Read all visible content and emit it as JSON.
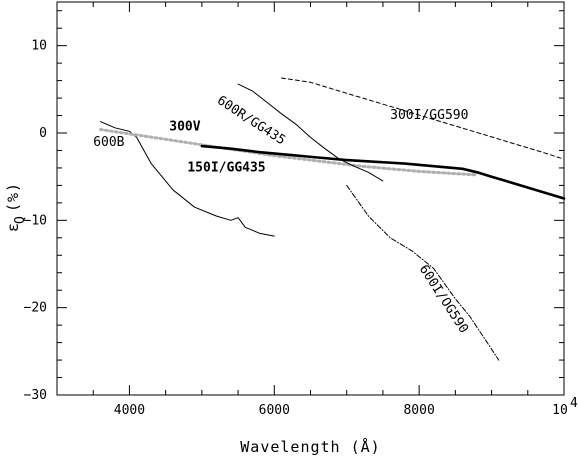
{
  "chart_data": {
    "type": "line",
    "title": "",
    "xlabel": "Wavelength  (Å)",
    "ylabel_main": "ε",
    "ylabel_sub": "Q",
    "ylabel_paren": "(%)",
    "xlim": [
      3000,
      10000
    ],
    "ylim": [
      -30,
      15
    ],
    "x_ticks": [
      {
        "value": 4000,
        "label": "4000"
      },
      {
        "value": 6000,
        "label": "6000"
      },
      {
        "value": 8000,
        "label": "8000"
      },
      {
        "value": 10000,
        "label": "10",
        "exponent": "4"
      }
    ],
    "y_ticks": [
      {
        "value": 10,
        "label": "10"
      },
      {
        "value": 0,
        "label": "0"
      },
      {
        "value": -10,
        "label": "−10"
      },
      {
        "value": -20,
        "label": "−20"
      },
      {
        "value": -30,
        "label": "−30"
      }
    ],
    "series": [
      {
        "name": "600B",
        "color": "#000000",
        "style": "solid-thin",
        "label": {
          "text": "600B",
          "x": 3500,
          "y": -1.5,
          "rotate": 0
        },
        "x": [
          3600,
          3800,
          4000,
          4100,
          4300,
          4600,
          4900,
          5200,
          5400,
          5500,
          5600,
          5800,
          6000
        ],
        "y": [
          1.3,
          0.6,
          0.2,
          -0.5,
          -3.5,
          -6.5,
          -8.5,
          -9.5,
          -10.0,
          -9.7,
          -10.8,
          -11.5,
          -11.8
        ]
      },
      {
        "name": "300V",
        "color": "#b0b0b0",
        "style": "dotted-gray",
        "label": {
          "text": "300V",
          "x": 4550,
          "y": 0.3,
          "rotate": 0
        },
        "x": [
          3600,
          4000,
          4400,
          4800,
          5200,
          5600,
          6000,
          6400,
          6800,
          7200,
          7600,
          8000,
          8400,
          8800
        ],
        "y": [
          0.4,
          -0.1,
          -0.6,
          -1.1,
          -1.6,
          -2.1,
          -2.6,
          -3.0,
          -3.4,
          -3.8,
          -4.1,
          -4.4,
          -4.6,
          -4.8
        ]
      },
      {
        "name": "150I/GG435",
        "color": "#000000",
        "style": "solid-thick",
        "label": {
          "text": "150I/GG435",
          "x": 4800,
          "y": -4.4,
          "rotate": 0
        },
        "x": [
          5000,
          5400,
          5800,
          6200,
          6600,
          7000,
          7400,
          7800,
          8200,
          8600,
          8800,
          9000,
          9200,
          9400,
          9600,
          9800,
          10000
        ],
        "y": [
          -1.5,
          -1.8,
          -2.2,
          -2.5,
          -2.8,
          -3.1,
          -3.3,
          -3.5,
          -3.8,
          -4.1,
          -4.5,
          -5.0,
          -5.5,
          -6.0,
          -6.5,
          -7.0,
          -7.5
        ]
      },
      {
        "name": "600R/GG435",
        "color": "#000000",
        "style": "solid-thin",
        "label": {
          "text": "600R/GG435",
          "x": 5200,
          "y": 3.5,
          "rotate": 33
        },
        "x": [
          5500,
          5700,
          5900,
          6100,
          6300,
          6500,
          6700,
          6900,
          7100,
          7300,
          7500
        ],
        "y": [
          5.6,
          4.8,
          3.5,
          2.2,
          1.0,
          -0.5,
          -1.8,
          -3.0,
          -3.8,
          -4.5,
          -5.5
        ]
      },
      {
        "name": "300I/GG590",
        "color": "#000000",
        "style": "dashed",
        "label": {
          "text": "300I/GG590",
          "x": 7600,
          "y": 1.6,
          "rotate": 0
        },
        "x": [
          6100,
          6500,
          6900,
          7300,
          7700,
          8100,
          8500,
          8900,
          9300,
          9700,
          10000
        ],
        "y": [
          6.3,
          5.8,
          4.8,
          3.8,
          2.8,
          1.8,
          0.8,
          -0.2,
          -1.2,
          -2.2,
          -3.0
        ]
      },
      {
        "name": "600I/OG590",
        "color": "#000000",
        "style": "dashdot",
        "label": {
          "text": "600I/OG590",
          "x": 8000,
          "y": -15.5,
          "rotate": 57
        },
        "x": [
          7000,
          7300,
          7600,
          7900,
          8200,
          8500,
          8700,
          8900,
          9100
        ],
        "y": [
          -6.0,
          -9.5,
          -12.0,
          -13.5,
          -15.5,
          -19.0,
          -21.0,
          -23.5,
          -26.0
        ]
      }
    ]
  }
}
